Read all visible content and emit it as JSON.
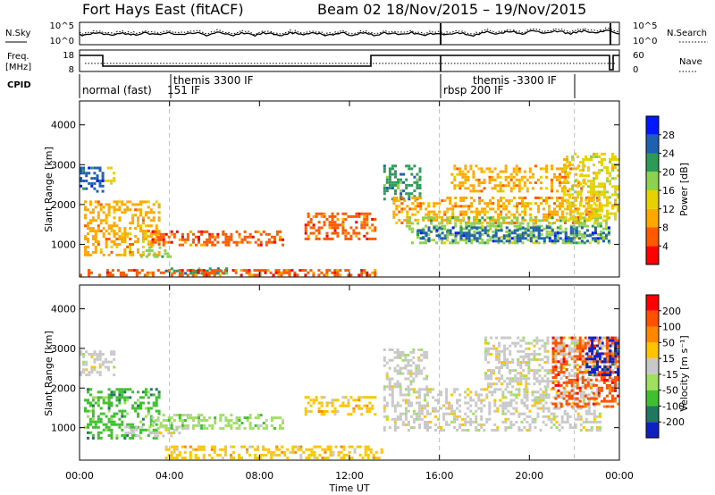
{
  "header": {
    "station": "Fort Hays East (fitACF)",
    "beam": "Beam 02",
    "dates": "18/Nov/2015 – 19/Nov/2015"
  },
  "labels": {
    "nsky": "N.Sky",
    "nsearch": "N.Search",
    "freq": "Freq.",
    "freq_unit": "[MHz]",
    "nave": "Nave",
    "cpid": "CPID",
    "slant_range": "Slant Range [km]",
    "power": "Power [dB]",
    "velocity": "Velocity [m s⁻¹]",
    "time_ut": "Time UT"
  },
  "noise_axis": {
    "left": [
      "10^5",
      "10^0"
    ],
    "right": [
      "10^5",
      "10^0"
    ]
  },
  "freq_axis": {
    "left": [
      "18",
      "8"
    ],
    "right": [
      "60",
      "0"
    ]
  },
  "cpid_segments": [
    {
      "label": "normal (fast)",
      "start_h": 0,
      "end_h": 4
    },
    {
      "label": "151 IF",
      "start_h": 4,
      "end_h": 4
    },
    {
      "label": "themis 3300 IF",
      "start_h": 4,
      "end_h": 16
    },
    {
      "label": "rbsp 200 IF",
      "start_h": 16,
      "end_h": 22
    },
    {
      "label": "themis -3300 IF",
      "start_h": 22,
      "end_h": 24
    }
  ],
  "power_scale": {
    "ticks": [
      "28",
      "24",
      "20",
      "16",
      "12",
      "8",
      "4"
    ],
    "colors": [
      "#ff0000",
      "#ff5a00",
      "#ffa800",
      "#e6d200",
      "#8ed050",
      "#2e9a58",
      "#2060b0",
      "#0018ff"
    ]
  },
  "velocity_scale": {
    "ticks": [
      "200",
      "100",
      "50",
      "15",
      "-15",
      "-50",
      "-100",
      "-200"
    ],
    "colors": [
      "#1020c0",
      "#207860",
      "#40c030",
      "#a0e060",
      "#c8c8c8",
      "#ffc400",
      "#ff8800",
      "#ff5000",
      "#ff0000"
    ]
  },
  "chart_data": {
    "type": "heatmap",
    "x_ticks": [
      "00:00",
      "04:00",
      "08:00",
      "12:00",
      "16:00",
      "20:00",
      "00:00"
    ],
    "y_ticks": [
      "1000",
      "2000",
      "3000",
      "4000"
    ],
    "xlim_hours": [
      0,
      24
    ],
    "ylim_km": [
      180,
      4600
    ],
    "xlabel": "Time UT",
    "panels": [
      {
        "name": "Power [dB]",
        "regions": [
          {
            "t0": 0,
            "t1": 1.1,
            "r0": 2300,
            "r1": 2950,
            "level": 6
          },
          {
            "t0": 1.1,
            "t1": 1.6,
            "r0": 2500,
            "r1": 2950,
            "level": 3
          },
          {
            "t0": 0.2,
            "t1": 3.6,
            "r0": 700,
            "r1": 2100,
            "level": 2
          },
          {
            "t0": 2.7,
            "t1": 4.1,
            "r0": 650,
            "r1": 950,
            "level": 4
          },
          {
            "t0": 3.2,
            "t1": 9.1,
            "r0": 950,
            "r1": 1350,
            "level": 1
          },
          {
            "t0": 3.8,
            "t1": 6.6,
            "r0": 250,
            "r1": 420,
            "level": 5
          },
          {
            "t0": 0,
            "t1": 13.2,
            "r0": 200,
            "r1": 380,
            "level": 1
          },
          {
            "t0": 10.0,
            "t1": 13.2,
            "r0": 1100,
            "r1": 1800,
            "level": 1
          },
          {
            "t0": 13.5,
            "t1": 15.2,
            "r0": 2100,
            "r1": 3000,
            "level": 5
          },
          {
            "t0": 13.8,
            "t1": 23.2,
            "r0": 1500,
            "r1": 2200,
            "level": 2
          },
          {
            "t0": 14.5,
            "t1": 23.6,
            "r0": 1000,
            "r1": 1700,
            "level": 4
          },
          {
            "t0": 15.0,
            "t1": 23.6,
            "r0": 1050,
            "r1": 1450,
            "level": 6
          },
          {
            "t0": 16.5,
            "t1": 22.5,
            "r0": 2300,
            "r1": 3000,
            "level": 2
          },
          {
            "t0": 21.5,
            "t1": 24,
            "r0": 1600,
            "r1": 3300,
            "level": 3
          }
        ]
      },
      {
        "name": "Velocity [m s⁻¹]",
        "regions": [
          {
            "t0": 0,
            "t1": 1.6,
            "r0": 2300,
            "r1": 2950,
            "level": 4
          },
          {
            "t0": 0.2,
            "t1": 3.6,
            "r0": 700,
            "r1": 2000,
            "level": 2
          },
          {
            "t0": 2.0,
            "t1": 4.5,
            "r0": 750,
            "r1": 1050,
            "level": 4
          },
          {
            "t0": 3.2,
            "t1": 9.1,
            "r0": 950,
            "r1": 1350,
            "level": 3
          },
          {
            "t0": 3.8,
            "t1": 13.5,
            "r0": 200,
            "r1": 550,
            "level": 5
          },
          {
            "t0": 10.0,
            "t1": 13.2,
            "r0": 1300,
            "r1": 1800,
            "level": 5
          },
          {
            "t0": 13.5,
            "t1": 23.2,
            "r0": 900,
            "r1": 2000,
            "level": 4
          },
          {
            "t0": 13.5,
            "t1": 15.5,
            "r0": 2000,
            "r1": 3000,
            "level": 4
          },
          {
            "t0": 18.0,
            "t1": 24,
            "r0": 2000,
            "r1": 3300,
            "level": 4
          },
          {
            "t0": 21.0,
            "t1": 24,
            "r0": 1500,
            "r1": 3300,
            "level": 7
          },
          {
            "t0": 22.5,
            "t1": 24,
            "r0": 2300,
            "r1": 3300,
            "level": 0
          }
        ]
      }
    ]
  }
}
